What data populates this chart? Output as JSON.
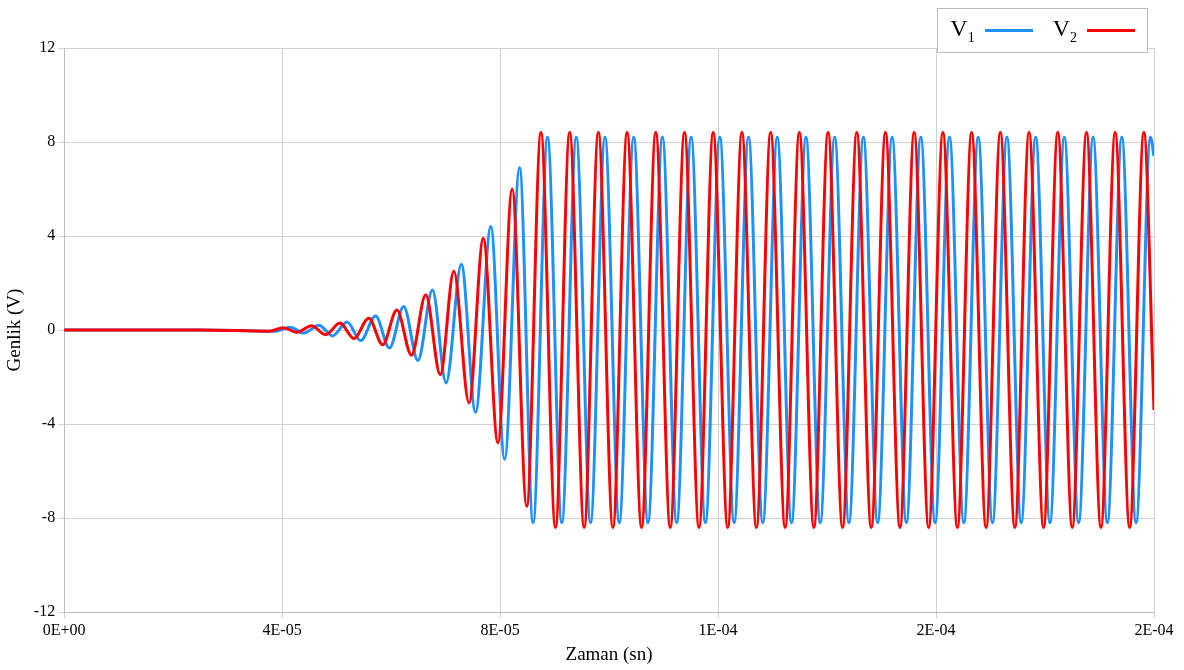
{
  "chart_data": {
    "type": "line",
    "xlabel": "Zaman (sn)",
    "ylabel": "Genlik (V)",
    "xlim": [
      0,
      0.0002
    ],
    "ylim": [
      -12,
      12
    ],
    "xticks": [
      {
        "value": 0,
        "label": "0E+00"
      },
      {
        "value": 4e-05,
        "label": "4E-05"
      },
      {
        "value": 8e-05,
        "label": "8E-05"
      },
      {
        "value": 0.00012,
        "label": "1E-04"
      },
      {
        "value": 0.00016,
        "label": "2E-04"
      },
      {
        "value": 0.0002,
        "label": "2E-04"
      }
    ],
    "yticks": [
      -12,
      -8,
      -4,
      0,
      4,
      8,
      12
    ],
    "grid": true,
    "legend": "top right",
    "marker": "none",
    "line_style": "solid",
    "series": [
      {
        "name": "V$_{1}$",
        "color": "#1e90ff",
        "x": [
          0,
          2.5e-05,
          3.88e-05,
          4.147e-05,
          4.397e-05,
          4.677e-05,
          4.925e-05,
          5.192e-05,
          5.442e-05,
          5.715e-05,
          5.97e-05,
          6.231e-05,
          6.493e-05,
          6.759e-05,
          7.009e-05,
          7.289e-05,
          7.55e-05,
          7.83e-05,
          8.084e-05,
          8.358e-05,
          8.606e-05,
          8.871e-05,
          9.133e-05,
          9.398e-05,
          9.66e-05,
          9.925e-05,
          0.00010187,
          0.00010452,
          0.00010714,
          0.00010979,
          0.00011241,
          0.00011506,
          0.00011768,
          0.00012032,
          0.00012295,
          0.00012559,
          0.00012821,
          0.00013086,
          0.00013348,
          0.00013613,
          0.00013875,
          0.0001414,
          0.00014402,
          0.00014667,
          0.00014929,
          0.00015194,
          0.00015456,
          0.00015721,
          0.00015983,
          0.00016247,
          0.0001651,
          0.00016774,
          0.00017036,
          0.00017301,
          0.00017563,
          0.00017828,
          0.0001809,
          0.00018355,
          0.00018617,
          0.00018882,
          0.00019144,
          0.00019409,
          0.00019671,
          0.00019936,
          0.0002
        ],
        "values": [
          0,
          0,
          -0.05,
          0.12,
          -0.13,
          0.2,
          -0.25,
          0.34,
          -0.45,
          0.6,
          -0.77,
          1.0,
          -1.3,
          1.7,
          -2.25,
          2.8,
          -3.5,
          4.4,
          -5.5,
          6.9,
          -8.2,
          8.2,
          -8.2,
          8.2,
          -8.2,
          8.2,
          -8.2,
          8.2,
          -8.2,
          8.2,
          -8.2,
          8.2,
          -8.2,
          8.2,
          -8.2,
          8.2,
          -8.2,
          8.2,
          -8.2,
          8.2,
          -8.2,
          8.2,
          -8.2,
          8.2,
          -8.2,
          8.2,
          -8.2,
          8.2,
          -8.2,
          8.2,
          -8.2,
          8.2,
          -8.2,
          8.2,
          -8.2,
          8.2,
          -8.2,
          8.2,
          -8.2,
          8.2,
          -8.2,
          8.2,
          -8.2,
          8.2,
          7.4
        ]
      },
      {
        "name": "V$_{2}$",
        "color": "#ff0000",
        "x": [
          0,
          2.5e-05,
          3.76e-05,
          4.024e-05,
          4.272e-05,
          4.539e-05,
          4.8e-05,
          5.062e-05,
          5.317e-05,
          5.591e-05,
          5.845e-05,
          6.106e-05,
          6.375e-05,
          6.636e-05,
          6.903e-05,
          7.151e-05,
          7.431e-05,
          7.692e-05,
          7.961e-05,
          8.222e-05,
          8.489e-05,
          8.75e-05,
          9.016e-05,
          9.277e-05,
          9.543e-05,
          9.804e-05,
          0.0001007,
          0.00010331,
          0.00010596,
          0.00010857,
          0.00011123,
          0.00011384,
          0.0001165,
          0.00011911,
          0.00012177,
          0.00012438,
          0.00012704,
          0.00012965,
          0.00013231,
          0.00013492,
          0.00013758,
          0.00014019,
          0.00014285,
          0.00014546,
          0.00014811,
          0.00015072,
          0.00015338,
          0.00015599,
          0.00015865,
          0.00016126,
          0.00016392,
          0.00016653,
          0.00016919,
          0.0001718,
          0.00017446,
          0.00017707,
          0.00017973,
          0.00018234,
          0.000185,
          0.00018761,
          0.00019026,
          0.00019287,
          0.00019553,
          0.00019814,
          0.0002
        ],
        "values": [
          0,
          0,
          -0.05,
          0.1,
          -0.1,
          0.18,
          -0.2,
          0.3,
          -0.36,
          0.5,
          -0.63,
          0.85,
          -1.07,
          1.5,
          -1.9,
          2.5,
          -3.1,
          3.9,
          -4.8,
          6.0,
          -7.5,
          8.4,
          -8.4,
          8.4,
          -8.4,
          8.4,
          -8.4,
          8.4,
          -8.4,
          8.4,
          -8.4,
          8.4,
          -8.4,
          8.4,
          -8.4,
          8.4,
          -8.4,
          8.4,
          -8.4,
          8.4,
          -8.4,
          8.4,
          -8.4,
          8.4,
          -8.4,
          8.4,
          -8.4,
          8.4,
          -8.4,
          8.4,
          -8.4,
          8.4,
          -8.4,
          8.4,
          -8.4,
          8.4,
          -8.4,
          8.4,
          -8.4,
          8.4,
          -8.4,
          8.4,
          -8.4,
          8.4,
          -3.4
        ]
      }
    ]
  }
}
